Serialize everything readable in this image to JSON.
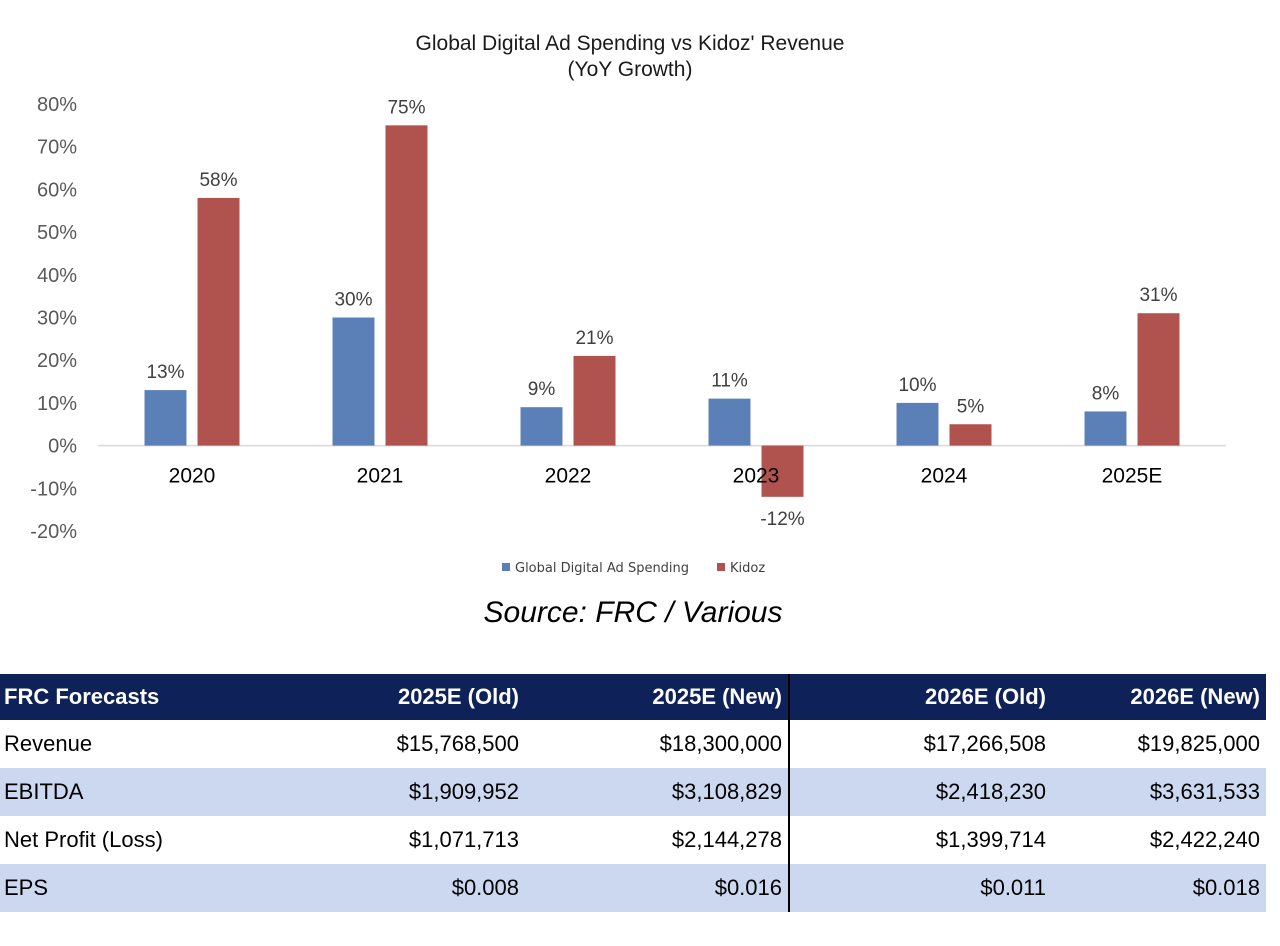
{
  "chart_data": {
    "type": "bar",
    "title": "Global Digital Ad Spending vs Kidoz' Revenue",
    "subtitle": "(YoY  Growth)",
    "categories": [
      "2020",
      "2021",
      "2022",
      "2023",
      "2024",
      "2025E"
    ],
    "series": [
      {
        "name": "Global Digital Ad Spending",
        "values": [
          13,
          30,
          9,
          11,
          10,
          8
        ],
        "labels": [
          "13%",
          "30%",
          "9%",
          "11%",
          "10%",
          "8%"
        ],
        "color": "#5b80b8"
      },
      {
        "name": "Kidoz",
        "values": [
          58,
          75,
          21,
          -12,
          5,
          31
        ],
        "labels": [
          "58%",
          "75%",
          "21%",
          "-12%",
          "5%",
          "31%"
        ],
        "color": "#b0534e"
      }
    ],
    "yticks": [
      "80%",
      "70%",
      "60%",
      "50%",
      "40%",
      "30%",
      "20%",
      "10%",
      "0%",
      "-10%",
      "-20%"
    ],
    "ylim": [
      -20,
      80
    ],
    "grid": false,
    "legend_position": "bottom"
  },
  "source": "Source: FRC / Various",
  "table": {
    "headers": [
      "FRC Forecasts",
      "2025E (Old)",
      "2025E (New)",
      "2026E (Old)",
      "2026E (New)"
    ],
    "rows": [
      [
        "Revenue",
        "$15,768,500",
        "$18,300,000",
        "$17,266,508",
        "$19,825,000"
      ],
      [
        "EBITDA",
        "$1,909,952",
        "$3,108,829",
        "$2,418,230",
        "$3,631,533"
      ],
      [
        "Net Profit (Loss)",
        "$1,071,713",
        "$2,144,278",
        "$1,399,714",
        "$2,422,240"
      ],
      [
        "EPS",
        "$0.008",
        "$0.016",
        "$0.011",
        "$0.018"
      ]
    ]
  }
}
